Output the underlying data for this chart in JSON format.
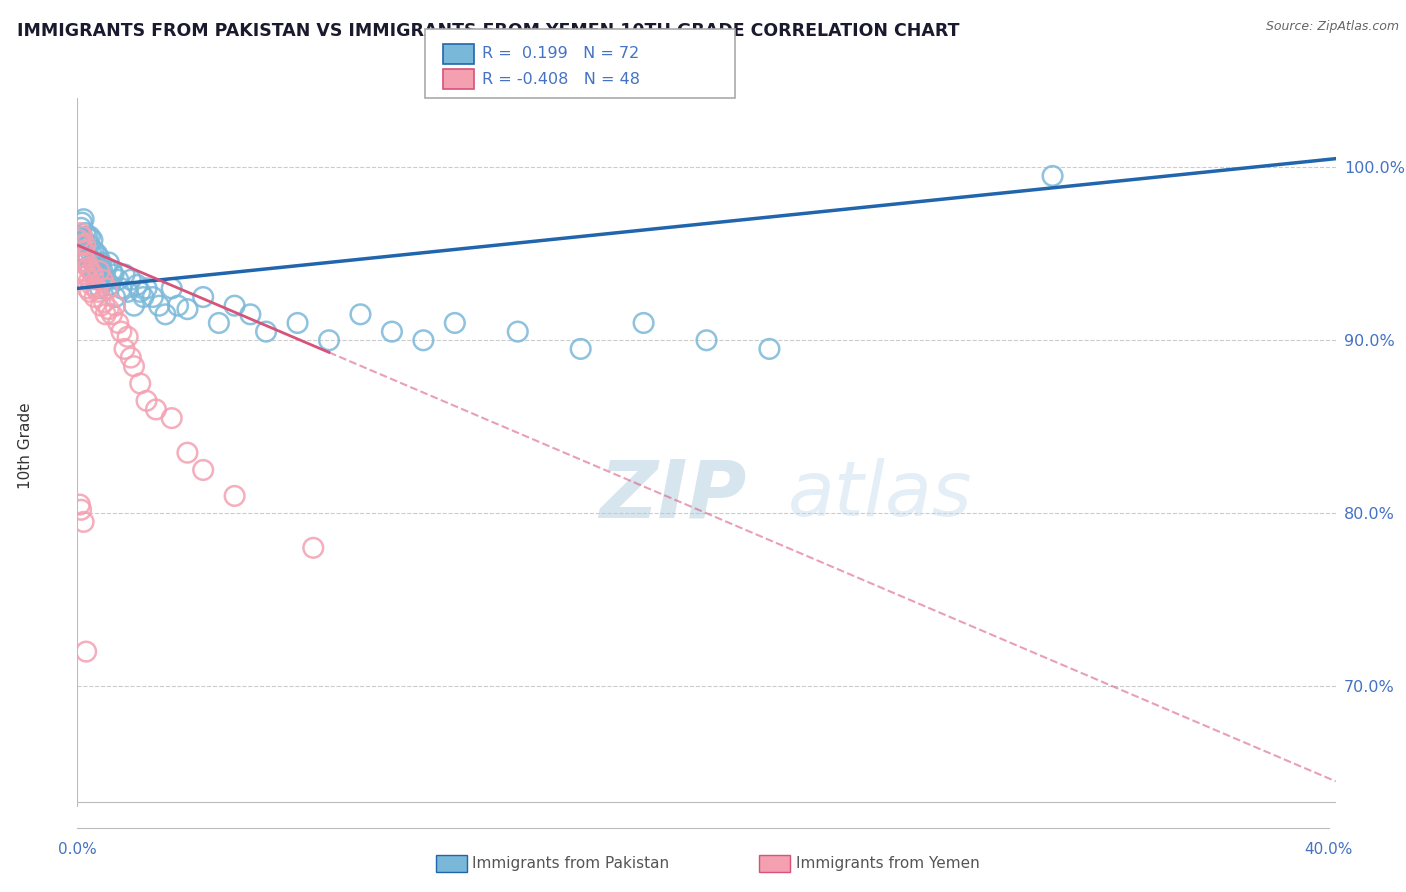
{
  "title": "IMMIGRANTS FROM PAKISTAN VS IMMIGRANTS FROM YEMEN 10TH GRADE CORRELATION CHART",
  "source": "Source: ZipAtlas.com",
  "ylabel": "10th Grade",
  "y_ticks": [
    70.0,
    80.0,
    90.0,
    100.0
  ],
  "x_range": [
    0.0,
    40.0
  ],
  "y_range": [
    63.0,
    104.0
  ],
  "pakistan_R": 0.199,
  "pakistan_N": 72,
  "yemen_R": -0.408,
  "yemen_N": 48,
  "pakistan_color": "#7ab8d9",
  "yemen_color": "#f4a0b0",
  "pakistan_line_color": "#2166ac",
  "yemen_line_color": "#d6537a",
  "background_color": "#ffffff",
  "grid_color": "#cccccc",
  "axis_label_color": "#4472c4",
  "source_color": "#666666",
  "pk_trend_x0": 0.0,
  "pk_trend_y0": 93.0,
  "pk_trend_x1": 40.0,
  "pk_trend_y1": 100.5,
  "ym_trend_x0": 0.0,
  "ym_trend_y0": 95.5,
  "ym_trend_x1": 40.0,
  "ym_trend_y1": 64.5,
  "ym_solid_end": 8.0,
  "pakistan_scatter_x": [
    0.05,
    0.08,
    0.1,
    0.12,
    0.15,
    0.18,
    0.2,
    0.22,
    0.25,
    0.28,
    0.3,
    0.32,
    0.35,
    0.38,
    0.4,
    0.42,
    0.45,
    0.48,
    0.5,
    0.52,
    0.55,
    0.58,
    0.6,
    0.62,
    0.65,
    0.68,
    0.7,
    0.72,
    0.75,
    0.78,
    0.8,
    0.85,
    0.9,
    0.95,
    1.0,
    1.05,
    1.1,
    1.15,
    1.2,
    1.3,
    1.4,
    1.5,
    1.6,
    1.7,
    1.8,
    1.9,
    2.0,
    2.1,
    2.2,
    2.4,
    2.6,
    2.8,
    3.0,
    3.2,
    3.5,
    4.0,
    4.5,
    5.0,
    5.5,
    6.0,
    7.0,
    8.0,
    9.0,
    10.0,
    11.0,
    12.0,
    14.0,
    16.0,
    18.0,
    20.0,
    22.0,
    31.0
  ],
  "pakistan_scatter_y": [
    95.5,
    96.0,
    95.0,
    96.5,
    96.8,
    95.2,
    97.0,
    95.8,
    96.2,
    94.5,
    95.0,
    96.0,
    94.8,
    95.5,
    96.0,
    94.2,
    95.0,
    95.8,
    94.5,
    95.2,
    93.8,
    94.5,
    94.0,
    95.0,
    93.5,
    94.8,
    94.2,
    93.0,
    94.5,
    93.8,
    94.0,
    93.5,
    94.2,
    93.0,
    94.5,
    93.2,
    94.0,
    93.8,
    92.5,
    93.5,
    93.0,
    93.8,
    92.8,
    93.5,
    92.0,
    93.2,
    92.8,
    92.5,
    93.0,
    92.5,
    92.0,
    91.5,
    93.0,
    92.0,
    91.8,
    92.5,
    91.0,
    92.0,
    91.5,
    90.5,
    91.0,
    90.0,
    91.5,
    90.5,
    90.0,
    91.0,
    90.5,
    89.5,
    91.0,
    90.0,
    89.5,
    99.5
  ],
  "yemen_scatter_x": [
    0.05,
    0.08,
    0.1,
    0.12,
    0.15,
    0.18,
    0.2,
    0.22,
    0.25,
    0.28,
    0.3,
    0.32,
    0.35,
    0.38,
    0.4,
    0.42,
    0.45,
    0.5,
    0.55,
    0.6,
    0.65,
    0.7,
    0.75,
    0.8,
    0.85,
    0.9,
    0.95,
    1.0,
    1.1,
    1.2,
    1.3,
    1.4,
    1.5,
    1.6,
    1.7,
    1.8,
    2.0,
    2.2,
    2.5,
    3.0,
    3.5,
    4.0,
    5.0,
    7.5,
    0.08,
    0.12,
    0.2,
    0.28
  ],
  "yemen_scatter_y": [
    95.8,
    96.2,
    94.5,
    95.5,
    96.0,
    94.8,
    95.2,
    94.0,
    95.5,
    93.8,
    94.5,
    93.0,
    94.2,
    93.5,
    92.8,
    94.0,
    93.2,
    93.8,
    92.5,
    93.0,
    92.8,
    94.0,
    92.0,
    93.5,
    92.2,
    91.5,
    93.0,
    91.8,
    91.5,
    92.0,
    91.0,
    90.5,
    89.5,
    90.2,
    89.0,
    88.5,
    87.5,
    86.5,
    86.0,
    85.5,
    83.5,
    82.5,
    81.0,
    78.0,
    80.5,
    80.2,
    79.5,
    72.0
  ]
}
